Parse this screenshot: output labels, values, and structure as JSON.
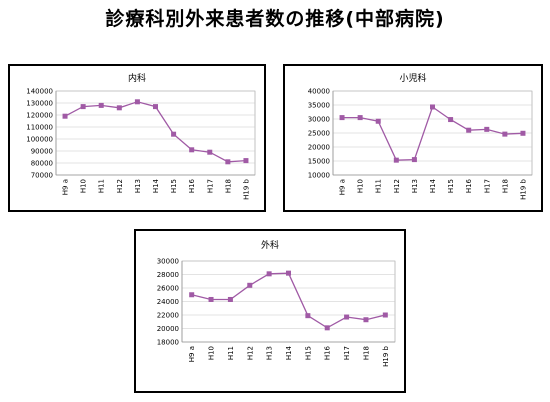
{
  "page": {
    "title": "診療科別外来患者数の推移(中部病院)"
  },
  "chart_data": [
    {
      "type": "line",
      "title": "内科",
      "categories": [
        "H9 a",
        "H10",
        "H11",
        "H12",
        "H13",
        "H14",
        "H15",
        "H16",
        "H17",
        "H18",
        "H19 b"
      ],
      "values": [
        119000,
        127000,
        128000,
        126000,
        131000,
        127000,
        104000,
        91000,
        89000,
        81000,
        82000
      ],
      "ylim": [
        70000,
        140000
      ],
      "yticks": [
        70000,
        80000,
        90000,
        100000,
        110000,
        120000,
        130000,
        140000
      ],
      "grid": true,
      "color": "#a05aa5"
    },
    {
      "type": "line",
      "title": "小児科",
      "categories": [
        "H9 a",
        "H10",
        "H11",
        "H12",
        "H13",
        "H14",
        "H15",
        "H16",
        "H17",
        "H18",
        "H19 b"
      ],
      "values": [
        30500,
        30500,
        29200,
        15300,
        15500,
        34300,
        29800,
        26000,
        26300,
        24600,
        24900
      ],
      "ylim": [
        10000,
        40000
      ],
      "yticks": [
        10000,
        15000,
        20000,
        25000,
        30000,
        35000,
        40000
      ],
      "grid": true,
      "color": "#a05aa5"
    },
    {
      "type": "line",
      "title": "外科",
      "categories": [
        "H9 a",
        "H10",
        "H11",
        "H12",
        "H13",
        "H14",
        "H15",
        "H16",
        "H17",
        "H18",
        "H19 b"
      ],
      "values": [
        25000,
        24300,
        24300,
        26400,
        28100,
        28200,
        21900,
        20100,
        21700,
        21300,
        22000
      ],
      "ylim": [
        18000,
        30000
      ],
      "yticks": [
        18000,
        20000,
        22000,
        24000,
        26000,
        28000,
        30000
      ],
      "grid": true,
      "color": "#a05aa5"
    }
  ]
}
